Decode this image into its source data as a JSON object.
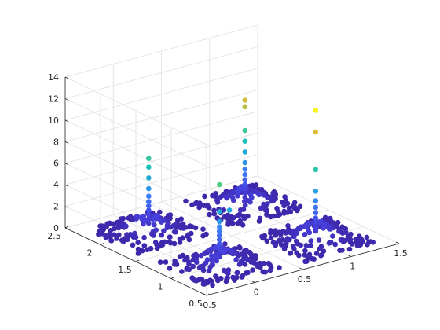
{
  "chart_data": {
    "type": "scatter",
    "title": "",
    "xlabel": "",
    "ylabel": "",
    "zlabel": "",
    "grid": true,
    "colormap": "parula",
    "colormap_stops": [
      "#3e26a8",
      "#4742e0",
      "#3e77f6",
      "#23a2e3",
      "#1ac2b4",
      "#55cc81",
      "#b8bc3c",
      "#f6be3b",
      "#f9fb15"
    ],
    "xlim": [
      -0.5,
      1.5
    ],
    "ylim": [
      0.5,
      2.5
    ],
    "zlim": [
      0,
      14
    ],
    "x_ticks": [
      "-0.5",
      "0",
      "0.5",
      "1",
      "1.5"
    ],
    "y_ticks": [
      "0.5",
      "1",
      "1.5",
      "2",
      "2.5"
    ],
    "z_ticks": [
      "0",
      "2",
      "4",
      "6",
      "8",
      "10",
      "12",
      "14"
    ],
    "clusters": [
      {
        "x": 0,
        "y": 1,
        "spread": 0.38,
        "base_count": 170,
        "column_z": [
          0.8,
          1.2,
          1.6,
          2.0,
          2.4,
          2.8,
          3.2,
          3.6,
          4.1,
          5.0,
          7.5
        ]
      },
      {
        "x": 1,
        "y": 1,
        "spread": 0.38,
        "base_count": 170,
        "column_z": [
          0.8,
          1.2,
          1.6,
          2.0,
          2.5,
          3.0,
          3.6,
          4.5,
          6.5,
          10.0,
          12.0
        ]
      },
      {
        "x": 0,
        "y": 2,
        "spread": 0.38,
        "base_count": 170,
        "column_z": [
          0.8,
          1.2,
          1.6,
          2.0,
          2.4,
          2.8,
          3.3,
          4.0,
          5.0,
          6.0,
          6.8
        ]
      },
      {
        "x": 1,
        "y": 2,
        "spread": 0.38,
        "base_count": 170,
        "column_z": [
          0.8,
          1.2,
          1.6,
          2.0,
          2.4,
          2.9,
          3.4,
          4.0,
          5.0,
          6.0,
          7.0,
          9.2,
          9.8
        ]
      }
    ],
    "outliers": [
      {
        "x": 0.12,
        "y": 1.02,
        "z": 4.8
      }
    ]
  }
}
